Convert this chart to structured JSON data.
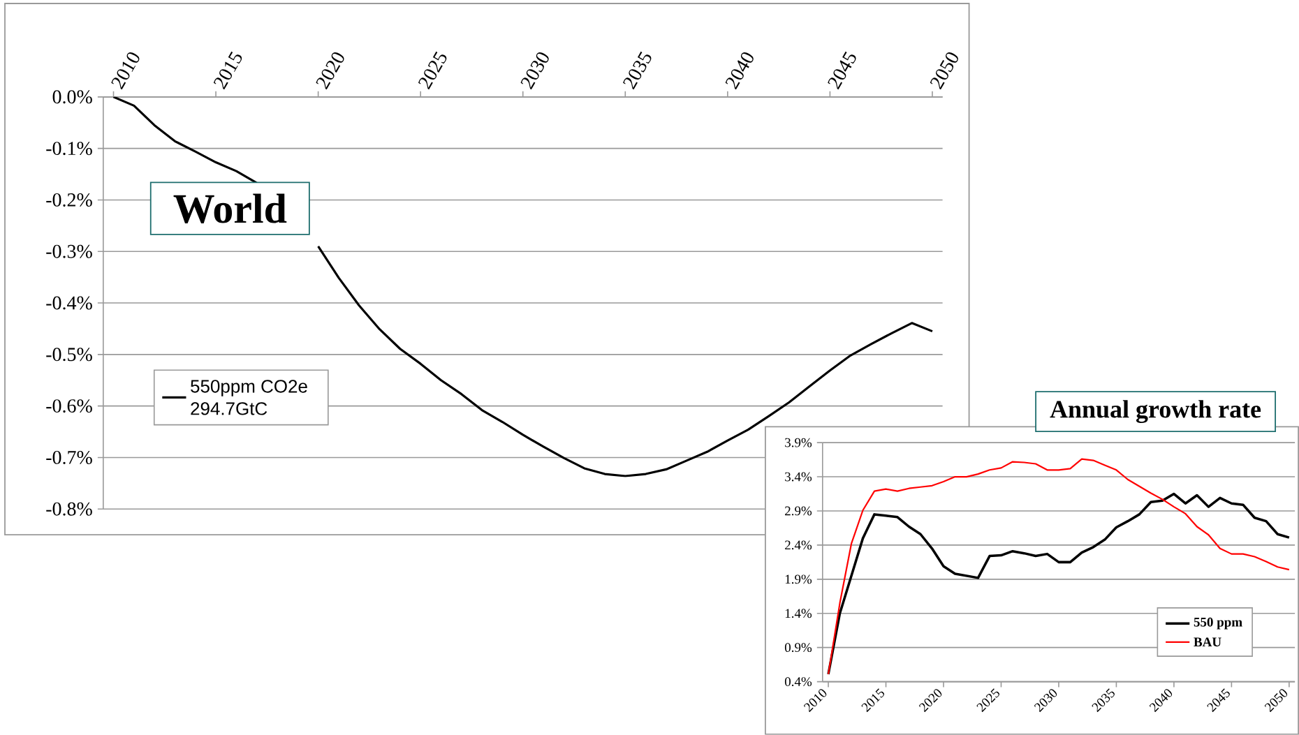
{
  "chart_data": [
    {
      "type": "line",
      "title": "World",
      "x": [
        2010,
        2011,
        2012,
        2013,
        2014,
        2015,
        2016,
        2017,
        2018,
        2019,
        2020,
        2021,
        2022,
        2023,
        2024,
        2025,
        2026,
        2027,
        2028,
        2029,
        2030,
        2031,
        2032,
        2033,
        2034,
        2035,
        2036,
        2037,
        2038,
        2039,
        2040,
        2041,
        2042,
        2043,
        2044,
        2045,
        2046,
        2047,
        2048,
        2049,
        2050
      ],
      "xlim": [
        2009.5,
        2050.5
      ],
      "xticks": [
        2010,
        2015,
        2020,
        2025,
        2030,
        2035,
        2040,
        2045,
        2050
      ],
      "ylim": [
        -0.8,
        0
      ],
      "yticks": [
        {
          "value": 0,
          "label": "0.0%"
        },
        {
          "value": -0.1,
          "label": "-0.1%"
        },
        {
          "value": -0.2,
          "label": "-0.2%"
        },
        {
          "value": -0.3,
          "label": "-0.3%"
        },
        {
          "value": -0.4,
          "label": "-0.4%"
        },
        {
          "value": -0.5,
          "label": "-0.5%"
        },
        {
          "value": -0.6,
          "label": "-0.6%"
        },
        {
          "value": -0.7,
          "label": "-0.7%"
        },
        {
          "value": -0.8,
          "label": "-0.8%"
        }
      ],
      "grid": "y",
      "legend": "left",
      "series": [
        {
          "name": "550ppm CO2e 294.7GtC",
          "color": "#000000",
          "values": [
            0,
            -0.017,
            -0.055,
            -0.086,
            -0.106,
            -0.127,
            -0.144,
            -0.167,
            null,
            null,
            -0.29,
            -0.351,
            -0.405,
            -0.451,
            -0.489,
            -0.518,
            -0.55,
            -0.577,
            -0.608,
            -0.631,
            -0.656,
            -0.679,
            -0.701,
            -0.721,
            -0.732,
            -0.736,
            -0.732,
            -0.723,
            -0.706,
            -0.689,
            -0.667,
            -0.646,
            -0.62,
            -0.593,
            -0.562,
            -0.531,
            -0.502,
            -0.48,
            -0.459,
            -0.439,
            -0.455
          ]
        }
      ]
    },
    {
      "type": "line",
      "title": "Annual growth rate",
      "x": [
        2010,
        2011,
        2012,
        2013,
        2014,
        2015,
        2016,
        2017,
        2018,
        2019,
        2020,
        2021,
        2022,
        2023,
        2024,
        2025,
        2026,
        2027,
        2028,
        2029,
        2030,
        2031,
        2032,
        2033,
        2034,
        2035,
        2036,
        2037,
        2038,
        2039,
        2040,
        2041,
        2042,
        2043,
        2044,
        2045,
        2046,
        2047,
        2048,
        2049,
        2050
      ],
      "xlim": [
        2009.5,
        2050.5
      ],
      "xticks": [
        2010,
        2015,
        2020,
        2025,
        2030,
        2035,
        2040,
        2045,
        2050
      ],
      "ylim": [
        0.4,
        3.9
      ],
      "yticks": [
        {
          "value": 0.4,
          "label": "0.4%"
        },
        {
          "value": 0.9,
          "label": "0.9%"
        },
        {
          "value": 1.4,
          "label": "1.4%"
        },
        {
          "value": 1.9,
          "label": "1.9%"
        },
        {
          "value": 2.4,
          "label": "2.4%"
        },
        {
          "value": 2.9,
          "label": "2.9%"
        },
        {
          "value": 3.4,
          "label": "3.4%"
        },
        {
          "value": 3.9,
          "label": "3.9%"
        }
      ],
      "grid": "y",
      "legend": "bottom right",
      "series": [
        {
          "name": "550 ppm",
          "color": "#000000",
          "values": [
            0.51,
            1.4,
            1.95,
            2.5,
            2.85,
            2.83,
            2.81,
            2.67,
            2.56,
            2.35,
            2.09,
            1.98,
            1.95,
            1.92,
            2.24,
            2.25,
            2.31,
            2.28,
            2.24,
            2.27,
            2.15,
            2.15,
            2.29,
            2.37,
            2.48,
            2.66,
            2.75,
            2.85,
            3.03,
            3.05,
            3.15,
            3.01,
            3.13,
            2.96,
            3.09,
            3.01,
            2.99,
            2.8,
            2.75,
            2.56,
            2.51
          ]
        },
        {
          "name": "BAU",
          "color": "#ff0000",
          "values": [
            0.51,
            1.55,
            2.42,
            2.91,
            3.19,
            3.22,
            3.19,
            3.23,
            3.25,
            3.27,
            3.33,
            3.4,
            3.4,
            3.44,
            3.5,
            3.53,
            3.62,
            3.61,
            3.59,
            3.5,
            3.5,
            3.52,
            3.66,
            3.64,
            3.57,
            3.5,
            3.36,
            3.26,
            3.16,
            3.07,
            2.96,
            2.86,
            2.67,
            2.55,
            2.35,
            2.27,
            2.27,
            2.23,
            2.16,
            2.08,
            2.04
          ]
        }
      ]
    }
  ]
}
